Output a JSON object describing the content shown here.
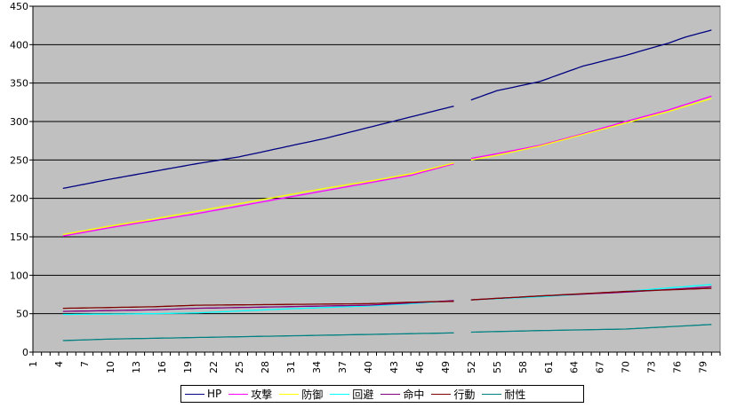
{
  "chart_data": {
    "type": "line",
    "title": "",
    "xlabel": "",
    "ylabel": "",
    "ylim": [
      0,
      450
    ],
    "yticks": [
      0,
      50,
      100,
      150,
      200,
      250,
      300,
      350,
      400,
      450
    ],
    "xlim": [
      1,
      81
    ],
    "xtick_labels": [
      "1",
      "4",
      "7",
      "10",
      "13",
      "16",
      "19",
      "22",
      "25",
      "28",
      "31",
      "34",
      "37",
      "40",
      "43",
      "46",
      "49",
      "52",
      "55",
      "58",
      "61",
      "64",
      "67",
      "70",
      "73",
      "76",
      "79"
    ],
    "grid": "horizontal",
    "legend_position": "bottom",
    "plot_background": "#c0c0c0",
    "gap_at_level": 51,
    "series": [
      {
        "name": "HP",
        "color": "#000080",
        "start": 4.5,
        "end": 80,
        "points": [
          [
            4.5,
            213
          ],
          [
            10,
            225
          ],
          [
            20,
            245
          ],
          [
            25,
            254
          ],
          [
            30,
            266
          ],
          [
            35,
            278
          ],
          [
            40,
            292
          ],
          [
            45,
            306
          ],
          [
            50,
            320
          ],
          [
            52,
            328
          ],
          [
            55,
            340
          ],
          [
            60,
            352
          ],
          [
            65,
            372
          ],
          [
            70,
            386
          ],
          [
            75,
            402
          ],
          [
            77,
            410
          ],
          [
            80,
            419
          ]
        ]
      },
      {
        "name": "攻撃",
        "color": "#ff00ff",
        "start": 4.5,
        "end": 80,
        "points": [
          [
            4.5,
            151
          ],
          [
            10,
            162
          ],
          [
            15,
            171
          ],
          [
            20,
            180
          ],
          [
            25,
            190
          ],
          [
            30,
            200
          ],
          [
            35,
            210
          ],
          [
            40,
            220
          ],
          [
            45,
            230
          ],
          [
            50,
            245
          ],
          [
            52,
            252
          ],
          [
            55,
            258
          ],
          [
            60,
            269
          ],
          [
            65,
            284
          ],
          [
            70,
            300
          ],
          [
            75,
            315
          ],
          [
            80,
            333
          ]
        ]
      },
      {
        "name": "防御",
        "color": "#ffff00",
        "start": 4.5,
        "end": 80,
        "points": [
          [
            4.5,
            153
          ],
          [
            10,
            164
          ],
          [
            15,
            173
          ],
          [
            20,
            183
          ],
          [
            25,
            193
          ],
          [
            30,
            203
          ],
          [
            35,
            213
          ],
          [
            40,
            222
          ],
          [
            45,
            232
          ],
          [
            50,
            246
          ],
          [
            52,
            250
          ],
          [
            55,
            256
          ],
          [
            60,
            268
          ],
          [
            65,
            283
          ],
          [
            70,
            298
          ],
          [
            75,
            313
          ],
          [
            80,
            330
          ]
        ]
      },
      {
        "name": "回避",
        "color": "#00ffff",
        "start": 4.5,
        "end": 80,
        "points": [
          [
            4.5,
            49
          ],
          [
            15,
            50
          ],
          [
            20,
            51
          ],
          [
            30,
            56
          ],
          [
            40,
            60
          ],
          [
            45,
            63
          ],
          [
            50,
            67
          ],
          [
            52,
            68
          ],
          [
            60,
            72
          ],
          [
            70,
            79
          ],
          [
            80,
            88
          ]
        ]
      },
      {
        "name": "命中",
        "color": "#800080",
        "start": 4.5,
        "end": 80,
        "points": [
          [
            4.5,
            53
          ],
          [
            15,
            55
          ],
          [
            20,
            57
          ],
          [
            30,
            59
          ],
          [
            40,
            61
          ],
          [
            45,
            64
          ],
          [
            50,
            67
          ],
          [
            52,
            68
          ],
          [
            60,
            73
          ],
          [
            70,
            78
          ],
          [
            80,
            85
          ]
        ]
      },
      {
        "name": "行動",
        "color": "#800000",
        "start": 4.5,
        "end": 80,
        "points": [
          [
            4.5,
            57
          ],
          [
            15,
            59
          ],
          [
            20,
            61
          ],
          [
            30,
            62
          ],
          [
            40,
            63
          ],
          [
            45,
            65
          ],
          [
            50,
            66
          ],
          [
            52,
            68
          ],
          [
            60,
            73
          ],
          [
            70,
            79
          ],
          [
            80,
            83
          ]
        ]
      },
      {
        "name": "耐性",
        "color": "#008080",
        "start": 4.5,
        "end": 80,
        "points": [
          [
            4.5,
            15
          ],
          [
            10,
            17
          ],
          [
            20,
            19
          ],
          [
            30,
            21
          ],
          [
            40,
            23
          ],
          [
            50,
            25
          ],
          [
            52,
            26
          ],
          [
            60,
            28
          ],
          [
            70,
            30
          ],
          [
            80,
            36
          ]
        ]
      }
    ]
  }
}
